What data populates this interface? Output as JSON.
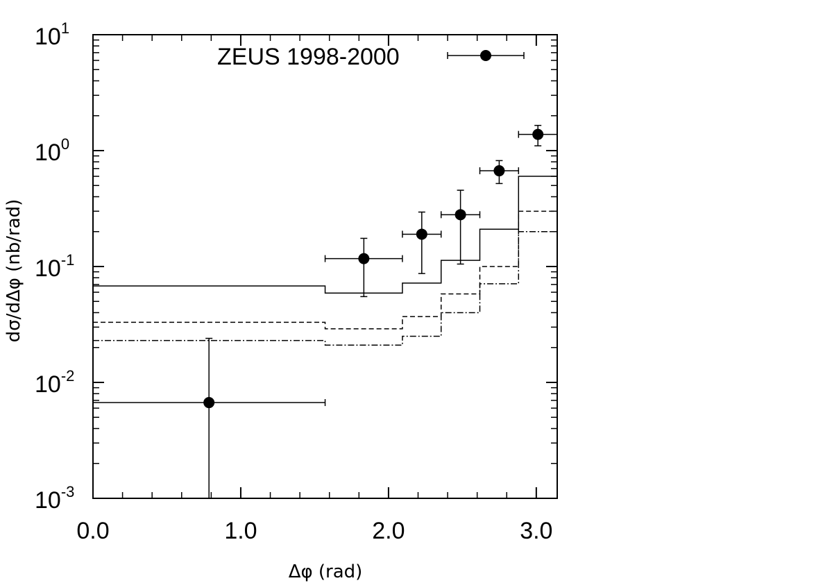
{
  "chart_data": {
    "type": "scatter",
    "xlabel": "Δφ (rad)",
    "ylabel": "dσ/dΔφ (nb/rad)",
    "xlim": [
      0.0,
      3.1416
    ],
    "ylim": [
      0.001,
      10
    ],
    "yscale": "log",
    "x_ticks": [
      "0.0",
      "1.0",
      "2.0",
      "3.0"
    ],
    "x_tick_values": [
      0.0,
      1.0,
      2.0,
      3.0
    ],
    "y_ticks": [
      {
        "value": 10,
        "base": "10",
        "exp": "1"
      },
      {
        "value": 1,
        "base": "10",
        "exp": "0"
      },
      {
        "value": 0.1,
        "base": "10",
        "exp": "-1"
      },
      {
        "value": 0.01,
        "base": "10",
        "exp": "-2"
      },
      {
        "value": 0.001,
        "base": "10",
        "exp": "-3"
      }
    ],
    "legend": {
      "label": "ZEUS 1998-2000",
      "placement": "top"
    },
    "data_series": {
      "name": "ZEUS 1998-2000",
      "points": [
        {
          "x": 0.785,
          "xlo": 0.0,
          "xhi": 1.571,
          "y": 0.0067,
          "ylo": 0.001,
          "yhi": 0.024
        },
        {
          "x": 1.833,
          "xlo": 1.571,
          "xhi": 2.094,
          "y": 0.117,
          "ylo": 0.055,
          "yhi": 0.175
        },
        {
          "x": 2.225,
          "xlo": 2.094,
          "xhi": 2.356,
          "y": 0.19,
          "ylo": 0.087,
          "yhi": 0.295
        },
        {
          "x": 2.487,
          "xlo": 2.356,
          "xhi": 2.618,
          "y": 0.28,
          "ylo": 0.105,
          "yhi": 0.455
        },
        {
          "x": 2.749,
          "xlo": 2.618,
          "xhi": 2.88,
          "y": 0.67,
          "ylo": 0.52,
          "yhi": 0.82
        },
        {
          "x": 3.011,
          "xlo": 2.88,
          "xhi": 3.1416,
          "y": 1.38,
          "ylo": 1.1,
          "yhi": 1.65
        }
      ]
    },
    "bin_edges": [
      0.0,
      1.571,
      2.094,
      2.356,
      2.618,
      2.88,
      3.1416
    ],
    "histograms": [
      {
        "style": "solid",
        "values": [
          0.068,
          0.059,
          0.072,
          0.113,
          0.21,
          0.6
        ]
      },
      {
        "style": "dashed",
        "values": [
          0.033,
          0.029,
          0.037,
          0.058,
          0.1,
          0.3
        ]
      },
      {
        "style": "dashdot",
        "values": [
          0.023,
          0.021,
          0.025,
          0.04,
          0.071,
          0.2
        ]
      }
    ]
  }
}
